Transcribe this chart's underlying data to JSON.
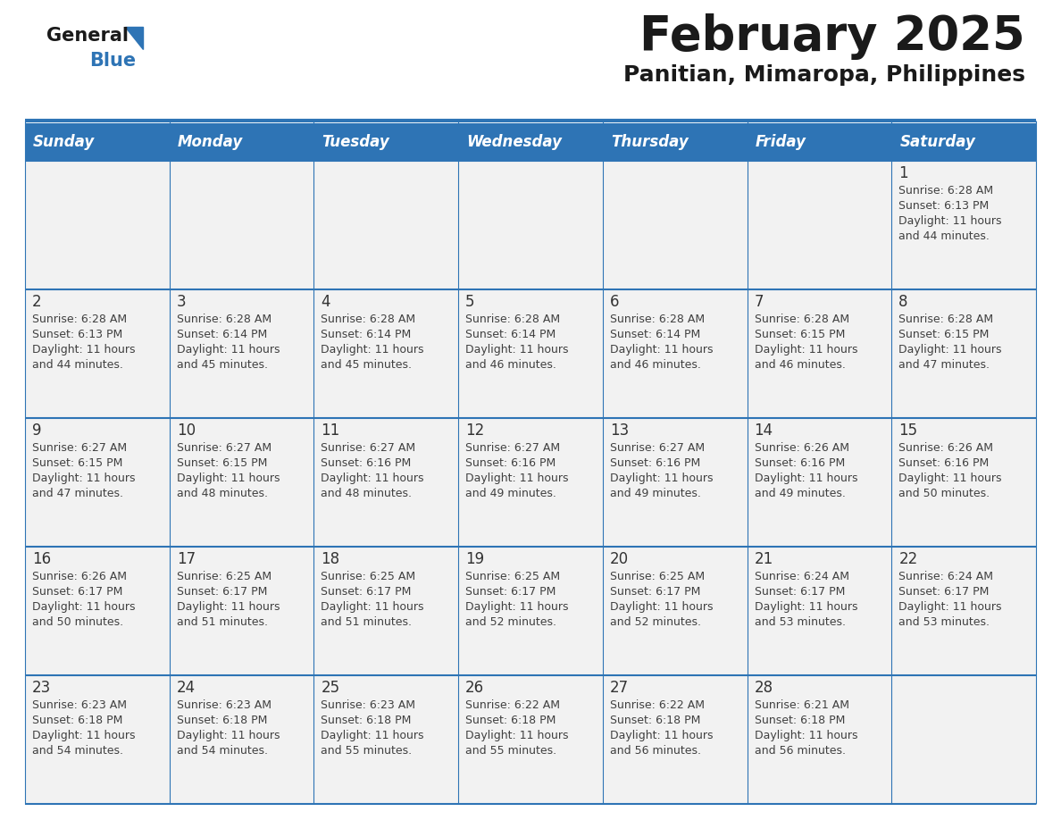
{
  "title": "February 2025",
  "subtitle": "Panitian, Mimaropa, Philippines",
  "days_of_week": [
    "Sunday",
    "Monday",
    "Tuesday",
    "Wednesday",
    "Thursday",
    "Friday",
    "Saturday"
  ],
  "header_bg": "#2E74B5",
  "header_text": "#FFFFFF",
  "cell_bg": "#F2F2F2",
  "border_color": "#2E74B5",
  "text_color": "#404040",
  "day_number_color": "#333333",
  "calendar_data": [
    [
      null,
      null,
      null,
      null,
      null,
      null,
      {
        "day": "1",
        "sunrise": "Sunrise: 6:28 AM",
        "sunset": "Sunset: 6:13 PM",
        "daylight": "Daylight: 11 hours",
        "daylight2": "and 44 minutes."
      }
    ],
    [
      {
        "day": "2",
        "sunrise": "Sunrise: 6:28 AM",
        "sunset": "Sunset: 6:13 PM",
        "daylight": "Daylight: 11 hours",
        "daylight2": "and 44 minutes."
      },
      {
        "day": "3",
        "sunrise": "Sunrise: 6:28 AM",
        "sunset": "Sunset: 6:14 PM",
        "daylight": "Daylight: 11 hours",
        "daylight2": "and 45 minutes."
      },
      {
        "day": "4",
        "sunrise": "Sunrise: 6:28 AM",
        "sunset": "Sunset: 6:14 PM",
        "daylight": "Daylight: 11 hours",
        "daylight2": "and 45 minutes."
      },
      {
        "day": "5",
        "sunrise": "Sunrise: 6:28 AM",
        "sunset": "Sunset: 6:14 PM",
        "daylight": "Daylight: 11 hours",
        "daylight2": "and 46 minutes."
      },
      {
        "day": "6",
        "sunrise": "Sunrise: 6:28 AM",
        "sunset": "Sunset: 6:14 PM",
        "daylight": "Daylight: 11 hours",
        "daylight2": "and 46 minutes."
      },
      {
        "day": "7",
        "sunrise": "Sunrise: 6:28 AM",
        "sunset": "Sunset: 6:15 PM",
        "daylight": "Daylight: 11 hours",
        "daylight2": "and 46 minutes."
      },
      {
        "day": "8",
        "sunrise": "Sunrise: 6:28 AM",
        "sunset": "Sunset: 6:15 PM",
        "daylight": "Daylight: 11 hours",
        "daylight2": "and 47 minutes."
      }
    ],
    [
      {
        "day": "9",
        "sunrise": "Sunrise: 6:27 AM",
        "sunset": "Sunset: 6:15 PM",
        "daylight": "Daylight: 11 hours",
        "daylight2": "and 47 minutes."
      },
      {
        "day": "10",
        "sunrise": "Sunrise: 6:27 AM",
        "sunset": "Sunset: 6:15 PM",
        "daylight": "Daylight: 11 hours",
        "daylight2": "and 48 minutes."
      },
      {
        "day": "11",
        "sunrise": "Sunrise: 6:27 AM",
        "sunset": "Sunset: 6:16 PM",
        "daylight": "Daylight: 11 hours",
        "daylight2": "and 48 minutes."
      },
      {
        "day": "12",
        "sunrise": "Sunrise: 6:27 AM",
        "sunset": "Sunset: 6:16 PM",
        "daylight": "Daylight: 11 hours",
        "daylight2": "and 49 minutes."
      },
      {
        "day": "13",
        "sunrise": "Sunrise: 6:27 AM",
        "sunset": "Sunset: 6:16 PM",
        "daylight": "Daylight: 11 hours",
        "daylight2": "and 49 minutes."
      },
      {
        "day": "14",
        "sunrise": "Sunrise: 6:26 AM",
        "sunset": "Sunset: 6:16 PM",
        "daylight": "Daylight: 11 hours",
        "daylight2": "and 49 minutes."
      },
      {
        "day": "15",
        "sunrise": "Sunrise: 6:26 AM",
        "sunset": "Sunset: 6:16 PM",
        "daylight": "Daylight: 11 hours",
        "daylight2": "and 50 minutes."
      }
    ],
    [
      {
        "day": "16",
        "sunrise": "Sunrise: 6:26 AM",
        "sunset": "Sunset: 6:17 PM",
        "daylight": "Daylight: 11 hours",
        "daylight2": "and 50 minutes."
      },
      {
        "day": "17",
        "sunrise": "Sunrise: 6:25 AM",
        "sunset": "Sunset: 6:17 PM",
        "daylight": "Daylight: 11 hours",
        "daylight2": "and 51 minutes."
      },
      {
        "day": "18",
        "sunrise": "Sunrise: 6:25 AM",
        "sunset": "Sunset: 6:17 PM",
        "daylight": "Daylight: 11 hours",
        "daylight2": "and 51 minutes."
      },
      {
        "day": "19",
        "sunrise": "Sunrise: 6:25 AM",
        "sunset": "Sunset: 6:17 PM",
        "daylight": "Daylight: 11 hours",
        "daylight2": "and 52 minutes."
      },
      {
        "day": "20",
        "sunrise": "Sunrise: 6:25 AM",
        "sunset": "Sunset: 6:17 PM",
        "daylight": "Daylight: 11 hours",
        "daylight2": "and 52 minutes."
      },
      {
        "day": "21",
        "sunrise": "Sunrise: 6:24 AM",
        "sunset": "Sunset: 6:17 PM",
        "daylight": "Daylight: 11 hours",
        "daylight2": "and 53 minutes."
      },
      {
        "day": "22",
        "sunrise": "Sunrise: 6:24 AM",
        "sunset": "Sunset: 6:17 PM",
        "daylight": "Daylight: 11 hours",
        "daylight2": "and 53 minutes."
      }
    ],
    [
      {
        "day": "23",
        "sunrise": "Sunrise: 6:23 AM",
        "sunset": "Sunset: 6:18 PM",
        "daylight": "Daylight: 11 hours",
        "daylight2": "and 54 minutes."
      },
      {
        "day": "24",
        "sunrise": "Sunrise: 6:23 AM",
        "sunset": "Sunset: 6:18 PM",
        "daylight": "Daylight: 11 hours",
        "daylight2": "and 54 minutes."
      },
      {
        "day": "25",
        "sunrise": "Sunrise: 6:23 AM",
        "sunset": "Sunset: 6:18 PM",
        "daylight": "Daylight: 11 hours",
        "daylight2": "and 55 minutes."
      },
      {
        "day": "26",
        "sunrise": "Sunrise: 6:22 AM",
        "sunset": "Sunset: 6:18 PM",
        "daylight": "Daylight: 11 hours",
        "daylight2": "and 55 minutes."
      },
      {
        "day": "27",
        "sunrise": "Sunrise: 6:22 AM",
        "sunset": "Sunset: 6:18 PM",
        "daylight": "Daylight: 11 hours",
        "daylight2": "and 56 minutes."
      },
      {
        "day": "28",
        "sunrise": "Sunrise: 6:21 AM",
        "sunset": "Sunset: 6:18 PM",
        "daylight": "Daylight: 11 hours",
        "daylight2": "and 56 minutes."
      },
      null
    ]
  ]
}
